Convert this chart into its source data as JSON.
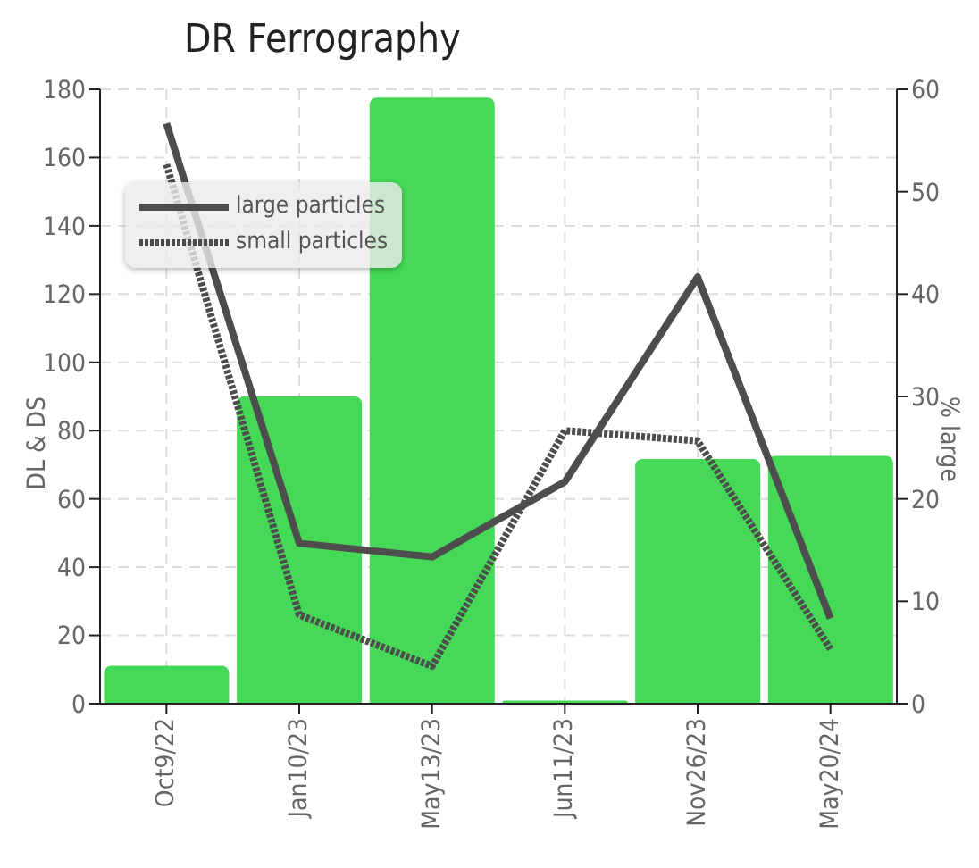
{
  "chart_data": {
    "type": "bar",
    "title": "DR Ferrography",
    "ylabel": "DL & DS",
    "y2label": "% large",
    "categories": [
      "Oct9/22",
      "Jan10/23",
      "May13/23",
      "Jun11/23",
      "Nov26/23",
      "May20/24"
    ],
    "series": [
      {
        "axis": "y2",
        "color": "#46d957",
        "values": [
          3.7,
          30,
          59.2,
          0.3,
          23.9,
          24.2
        ]
      },
      {
        "type": "line",
        "name": "large particles",
        "color": "#4d4d4d",
        "line_style": "solid",
        "values": [
          170,
          47,
          43,
          65,
          125,
          25
        ]
      },
      {
        "type": "line",
        "name": "small particles",
        "color": "#4d4d4d",
        "line_style": "dotted",
        "values": [
          158,
          26,
          11,
          80,
          77,
          16
        ]
      }
    ],
    "ylim": [
      0,
      180
    ],
    "yticks": [
      0,
      20,
      40,
      60,
      80,
      100,
      120,
      140,
      160,
      180
    ],
    "y2lim": [
      0,
      60
    ],
    "y2ticks": [
      0,
      10,
      20,
      30,
      40,
      50,
      60
    ],
    "grid": true,
    "legend": "top left",
    "marker": "none"
  }
}
